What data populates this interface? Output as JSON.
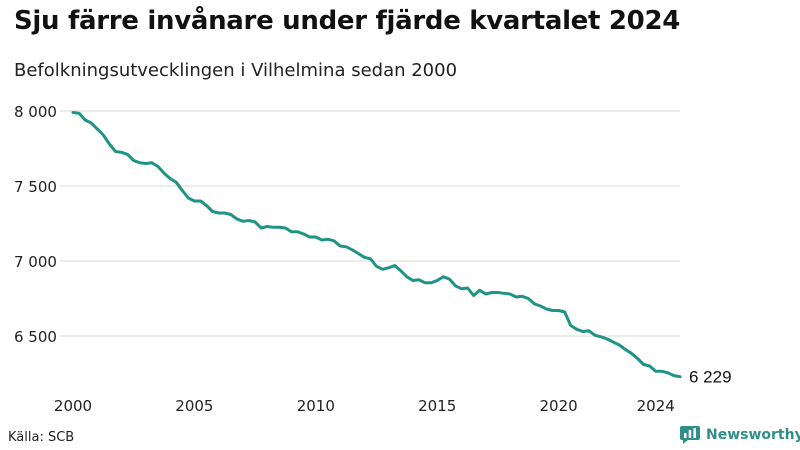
{
  "header": {
    "title": "Sju färre invånare under fjärde kvartalet 2024",
    "subtitle": "Befolkningsutvecklingen i Vilhelmina sedan 2000"
  },
  "footer": {
    "source": "Källa: SCB",
    "brand": "Newsworthy"
  },
  "colors": {
    "line": "#1e9486",
    "grid": "#d9d9d9",
    "brand": "#2f8e8a"
  },
  "chart_data": {
    "type": "line",
    "x_tick_labels": [
      "2000",
      "2005",
      "2010",
      "2015",
      "2020",
      "2024"
    ],
    "x_tick_values": [
      2000,
      2005,
      2010,
      2015,
      2020,
      2024
    ],
    "y_tick_labels": [
      "8 000",
      "7 500",
      "7 000",
      "6 500"
    ],
    "y_tick_values": [
      8000,
      7500,
      7000,
      6500
    ],
    "xlim": [
      2000,
      2025
    ],
    "ylim": [
      6170,
      8030
    ],
    "grid": "horizontal",
    "last_value_label": "6 229",
    "series": [
      {
        "values": [
          [
            2000.0,
            7990
          ],
          [
            2000.25,
            7985
          ],
          [
            2000.5,
            7940
          ],
          [
            2000.75,
            7920
          ],
          [
            2001.0,
            7880
          ],
          [
            2001.25,
            7840
          ],
          [
            2001.5,
            7780
          ],
          [
            2001.75,
            7730
          ],
          [
            2002.0,
            7725
          ],
          [
            2002.25,
            7710
          ],
          [
            2002.5,
            7670
          ],
          [
            2002.75,
            7655
          ],
          [
            2003.0,
            7650
          ],
          [
            2003.25,
            7655
          ],
          [
            2003.5,
            7630
          ],
          [
            2003.75,
            7585
          ],
          [
            2004.0,
            7550
          ],
          [
            2004.25,
            7525
          ],
          [
            2004.5,
            7470
          ],
          [
            2004.75,
            7420
          ],
          [
            2005.0,
            7400
          ],
          [
            2005.25,
            7400
          ],
          [
            2005.5,
            7370
          ],
          [
            2005.75,
            7330
          ],
          [
            2006.0,
            7320
          ],
          [
            2006.25,
            7320
          ],
          [
            2006.5,
            7310
          ],
          [
            2006.75,
            7280
          ],
          [
            2007.0,
            7265
          ],
          [
            2007.25,
            7270
          ],
          [
            2007.5,
            7260
          ],
          [
            2007.75,
            7220
          ],
          [
            2008.0,
            7230
          ],
          [
            2008.25,
            7225
          ],
          [
            2008.5,
            7225
          ],
          [
            2008.75,
            7220
          ],
          [
            2009.0,
            7195
          ],
          [
            2009.25,
            7195
          ],
          [
            2009.5,
            7180
          ],
          [
            2009.75,
            7160
          ],
          [
            2010.0,
            7160
          ],
          [
            2010.25,
            7140
          ],
          [
            2010.5,
            7145
          ],
          [
            2010.75,
            7135
          ],
          [
            2011.0,
            7100
          ],
          [
            2011.25,
            7095
          ],
          [
            2011.5,
            7075
          ],
          [
            2011.75,
            7050
          ],
          [
            2012.0,
            7025
          ],
          [
            2012.25,
            7015
          ],
          [
            2012.5,
            6965
          ],
          [
            2012.75,
            6945
          ],
          [
            2013.0,
            6955
          ],
          [
            2013.25,
            6970
          ],
          [
            2013.5,
            6935
          ],
          [
            2013.75,
            6895
          ],
          [
            2014.0,
            6870
          ],
          [
            2014.25,
            6875
          ],
          [
            2014.5,
            6855
          ],
          [
            2014.75,
            6855
          ],
          [
            2015.0,
            6870
          ],
          [
            2015.25,
            6895
          ],
          [
            2015.5,
            6880
          ],
          [
            2015.75,
            6835
          ],
          [
            2016.0,
            6815
          ],
          [
            2016.25,
            6820
          ],
          [
            2016.5,
            6770
          ],
          [
            2016.75,
            6805
          ],
          [
            2017.0,
            6780
          ],
          [
            2017.25,
            6790
          ],
          [
            2017.5,
            6790
          ],
          [
            2017.75,
            6785
          ],
          [
            2018.0,
            6780
          ],
          [
            2018.25,
            6760
          ],
          [
            2018.5,
            6765
          ],
          [
            2018.75,
            6750
          ],
          [
            2019.0,
            6715
          ],
          [
            2019.25,
            6700
          ],
          [
            2019.5,
            6680
          ],
          [
            2019.75,
            6670
          ],
          [
            2020.0,
            6670
          ],
          [
            2020.25,
            6660
          ],
          [
            2020.5,
            6570
          ],
          [
            2020.75,
            6545
          ],
          [
            2021.0,
            6530
          ],
          [
            2021.25,
            6535
          ],
          [
            2021.5,
            6505
          ],
          [
            2021.75,
            6495
          ],
          [
            2022.0,
            6480
          ],
          [
            2022.25,
            6460
          ],
          [
            2022.5,
            6440
          ],
          [
            2022.75,
            6410
          ],
          [
            2023.0,
            6385
          ],
          [
            2023.25,
            6350
          ],
          [
            2023.5,
            6310
          ],
          [
            2023.75,
            6300
          ],
          [
            2024.0,
            6265
          ],
          [
            2024.25,
            6265
          ],
          [
            2024.5,
            6255
          ],
          [
            2024.75,
            6236
          ],
          [
            2025.0,
            6229
          ]
        ]
      }
    ]
  }
}
